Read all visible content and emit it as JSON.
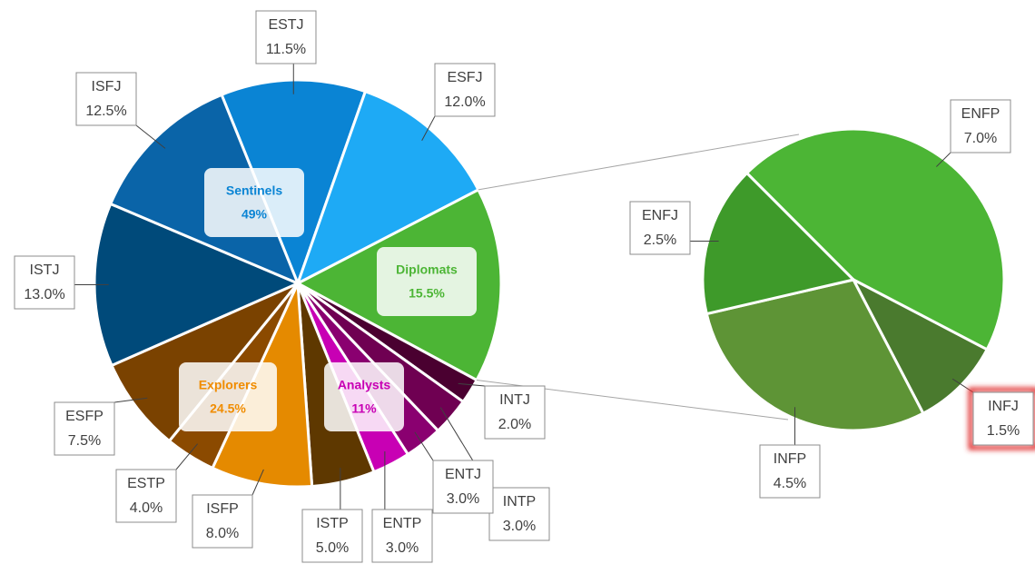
{
  "chart_data": [
    {
      "type": "pie",
      "categories": [
        "ESTJ",
        "ESFJ",
        null,
        "INTJ",
        "INTP",
        "ENTJ",
        "ENTP",
        "ISTP",
        "ISFP",
        "ESTP",
        "ESFP",
        "ISTJ",
        "ISFJ"
      ],
      "values": [
        11.5,
        12.0,
        15.5,
        2.0,
        3.0,
        3.0,
        3.0,
        5.0,
        8.0,
        4.0,
        7.5,
        13.0,
        12.5
      ],
      "value_labels": [
        "11.5%",
        "12.0%",
        null,
        "2.0%",
        "3.0%",
        "3.0%",
        "3.0%",
        "5.0%",
        "8.0%",
        "4.0%",
        "7.5%",
        "13.0%",
        "12.5%"
      ],
      "colors": [
        "#0a84d4",
        "#1eaaf5",
        "#4cb535",
        "#4a0030",
        "#6f0052",
        "#8a0070",
        "#c800b4",
        "#5e3800",
        "#e58a00",
        "#8b4a00",
        "#7a4200",
        "#004a7a",
        "#0a64a8"
      ],
      "groups": {
        "names": [
          "Sentinels",
          "Diplomats",
          "Explorers",
          "Analysts"
        ],
        "values": [
          49,
          15.5,
          24.5,
          11
        ],
        "value_labels": [
          "49%",
          "15.5%",
          "24.5%",
          "11%"
        ],
        "colors": [
          "#0a84d4",
          "#4cb535",
          "#f08c00",
          "#c800b4"
        ]
      }
    },
    {
      "type": "pie",
      "categories": [
        "ENFP",
        "INFJ",
        "INFP",
        "ENFJ"
      ],
      "values": [
        7.0,
        1.5,
        4.5,
        2.5
      ],
      "value_labels": [
        "7.0%",
        "1.5%",
        "4.5%",
        "2.5%"
      ],
      "colors": [
        "#4cb535",
        "#4a7a2e",
        "#5e9436",
        "#3e9a2a"
      ],
      "highlight": "INFJ"
    }
  ]
}
